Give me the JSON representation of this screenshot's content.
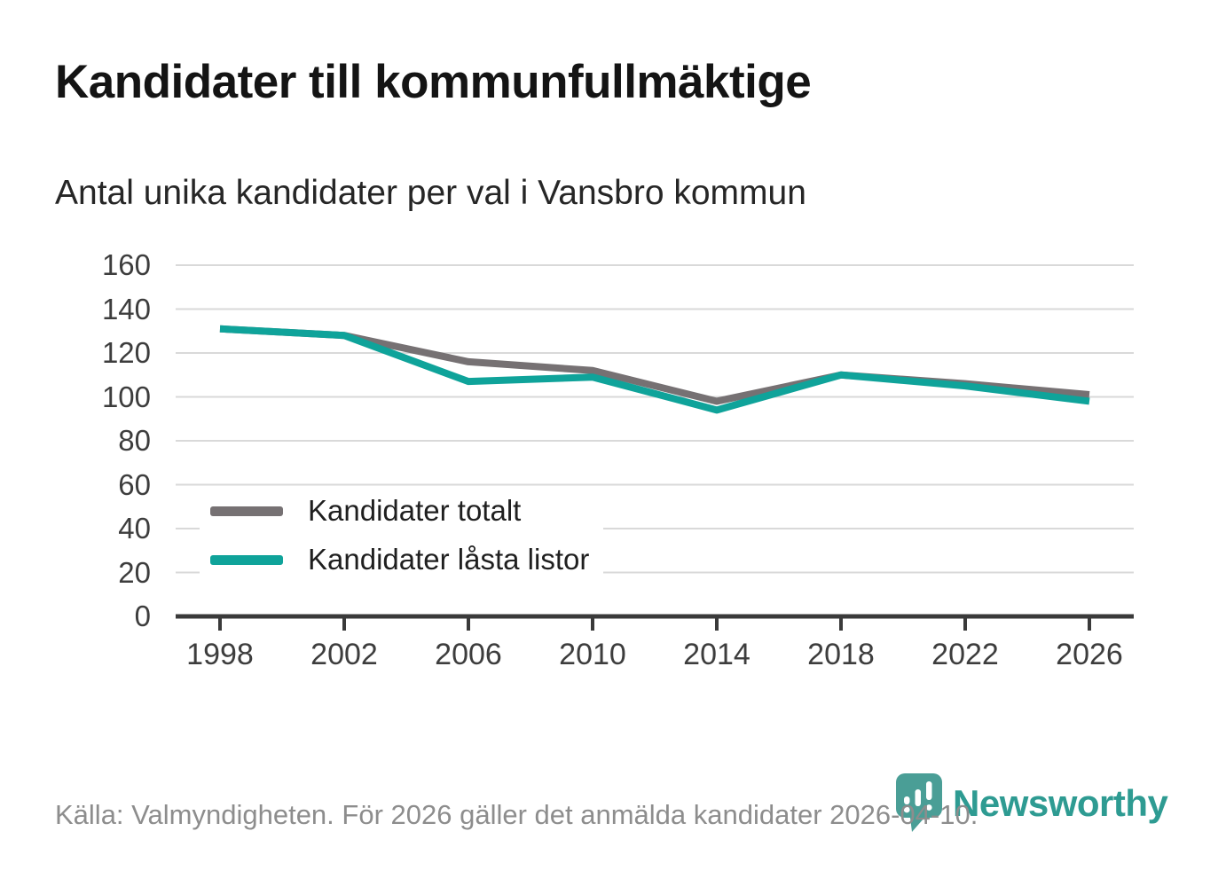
{
  "title": "Kandidater till kommunfullmäktige",
  "subtitle": "Antal unika kandidater per val i Vansbro kommun",
  "footer": {
    "source_text": "Källa: Valmyndigheten. För 2026 gäller det anmälda kandidater 2026-04-10."
  },
  "logo": {
    "wordmark": "Newsworthy",
    "icon": "newsworthy-pin-barchart-icon",
    "icon_color": "#4a9e96",
    "wordmark_color": "#2e9b92"
  },
  "chart_data": {
    "type": "line",
    "title": "Kandidater till kommunfullmäktige",
    "subtitle": "Antal unika kandidater per val i Vansbro kommun",
    "x": [
      1998,
      2002,
      2006,
      2010,
      2014,
      2018,
      2022,
      2026
    ],
    "series": [
      {
        "name": "Kandidater totalt",
        "color": "#767173",
        "values": [
          131,
          128,
          116,
          112,
          98,
          110,
          106,
          101
        ]
      },
      {
        "name": "Kandidater låsta listor",
        "color": "#0fa39a",
        "values": [
          131,
          128,
          107,
          109,
          94,
          110,
          105,
          98
        ]
      }
    ],
    "xlabel": "",
    "ylabel": "",
    "ylim": [
      0,
      160
    ],
    "ytick_step": 20,
    "yticks": [
      0,
      20,
      40,
      60,
      80,
      100,
      120,
      140,
      160
    ],
    "grid": "horizontal",
    "grid_color": "#d9d9d9",
    "axis_color": "#3a3a3a",
    "legend_position": "inside-bottom-left"
  }
}
